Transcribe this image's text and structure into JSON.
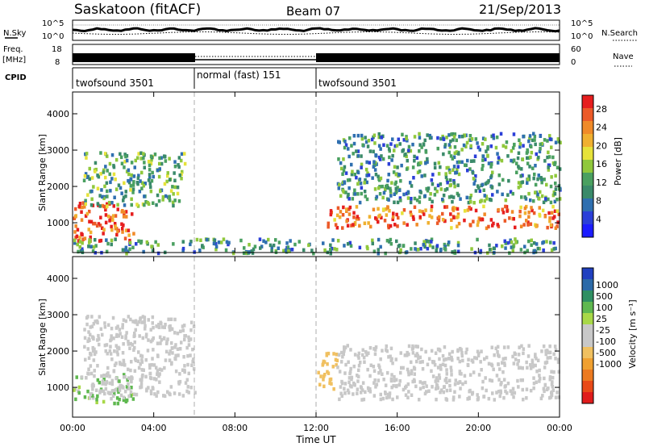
{
  "header": {
    "station": "Saskatoon (fitACF)",
    "beam": "Beam 07",
    "date": "21/Sep/2013"
  },
  "status_panels": {
    "nsky": {
      "label": "N.Sky",
      "right_label": "N.Search",
      "ticks_left": [
        "10^5",
        "10^0"
      ],
      "ticks_right": [
        "10^5",
        "10^0"
      ]
    },
    "freq": {
      "label_line1": "Freq.",
      "label_line2": "[MHz]",
      "right_label": "Nave",
      "ticks_left": [
        "18",
        "8"
      ],
      "ticks_right": [
        "60",
        "0"
      ]
    },
    "cpid": {
      "label": "CPID",
      "segments": [
        {
          "start": 0,
          "end": 6,
          "name": "twofsound 3501"
        },
        {
          "start": 6,
          "end": 12,
          "name": "normal (fast) 151"
        },
        {
          "start": 12,
          "end": 24,
          "name": "twofsound 3501"
        }
      ]
    }
  },
  "chart_data": [
    {
      "type": "heatmap",
      "panel": "power",
      "ylabel": "Slant Range [km]",
      "xlabel": "Time UT",
      "x_range_hours": [
        0,
        24
      ],
      "ylim": [
        180,
        4600
      ],
      "y_ticks": [
        1000,
        2000,
        3000,
        4000
      ],
      "colorbar": {
        "title": "Power [dB]",
        "ticks": [
          4,
          8,
          12,
          16,
          20,
          24,
          28
        ],
        "range": [
          0,
          31
        ],
        "colors": [
          "#1c1cff",
          "#2b3fd8",
          "#2f6fb0",
          "#3a8a6a",
          "#4aa060",
          "#90c83c",
          "#e6e23a",
          "#f0b030",
          "#f08a28",
          "#ec5a28",
          "#e61e1e"
        ]
      },
      "features": [
        {
          "description": "strong band",
          "t_start": 0.0,
          "t_end": 3.0,
          "range_km": [
            500,
            1600
          ],
          "power_db": 28
        },
        {
          "description": "sweeping band",
          "t_start": 0.5,
          "t_end": 5.5,
          "range_km": [
            1500,
            3000
          ],
          "power_db": 12
        },
        {
          "description": "near-range echoes",
          "t_start": 0.0,
          "t_end": 24.0,
          "range_km": [
            200,
            600
          ],
          "power_db": 10
        },
        {
          "description": "evening band",
          "t_start": 12.5,
          "t_end": 24.0,
          "range_km": [
            900,
            1500
          ],
          "power_db": 26
        },
        {
          "description": "upper echoes",
          "t_start": 13.0,
          "t_end": 24.0,
          "range_km": [
            1600,
            3500
          ],
          "power_db": 10
        }
      ]
    },
    {
      "type": "heatmap",
      "panel": "velocity",
      "ylabel": "Slant Range [km]",
      "xlabel": "Time UT",
      "x_range_hours": [
        0,
        24
      ],
      "ylim": [
        180,
        4600
      ],
      "y_ticks": [
        1000,
        2000,
        3000,
        4000
      ],
      "colorbar": {
        "title": "Velocity [m s⁻¹]",
        "ticks": [
          "1000",
          "500",
          "100",
          "25",
          "-25",
          "-100",
          "-500",
          "-1000"
        ],
        "colors": [
          "#2040c0",
          "#2c6aa8",
          "#2f8f62",
          "#5fb850",
          "#a8d848",
          "#c8c8c8",
          "#c8c8c8",
          "#f0c060",
          "#f0a030",
          "#ec7a20",
          "#e84a18",
          "#e01c1c"
        ]
      },
      "features": [
        {
          "description": "green low",
          "t_start": 0.0,
          "t_end": 3.0,
          "range_km": [
            600,
            1400
          ],
          "velocity": 100
        },
        {
          "description": "ground scatter",
          "t_start": 0.5,
          "t_end": 6.0,
          "range_km": [
            800,
            3000
          ],
          "velocity": 0
        },
        {
          "description": "orange patch",
          "t_start": 12.0,
          "t_end": 13.0,
          "range_km": [
            1000,
            2000
          ],
          "velocity": -300
        },
        {
          "description": "ground scatter late",
          "t_start": 13.0,
          "t_end": 24.0,
          "range_km": [
            700,
            2200
          ],
          "velocity": 0
        }
      ]
    }
  ],
  "x_axis": {
    "label": "Time UT",
    "ticks": [
      "00:00",
      "04:00",
      "08:00",
      "12:00",
      "16:00",
      "20:00",
      "00:00"
    ],
    "tick_hours": [
      0,
      4,
      8,
      12,
      16,
      20,
      24
    ]
  }
}
